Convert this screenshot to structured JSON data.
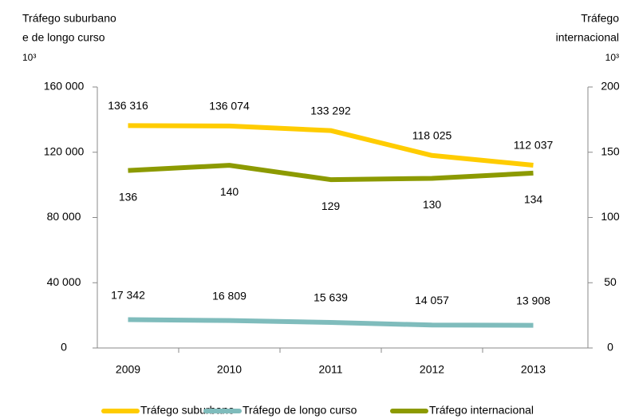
{
  "chart_data": {
    "type": "line",
    "y_axis_label": [
      "Tráfego suburbano",
      "e de longo curso"
    ],
    "y_unit": "10³",
    "y2_axis_label": [
      "Tráfego",
      "internacional"
    ],
    "y2_unit": "10³",
    "categories": [
      "2009",
      "2010",
      "2011",
      "2012",
      "2013"
    ],
    "series": [
      {
        "name": "Tráfego suburbano",
        "color": "#ffcc00",
        "values": [
          136316,
          136074,
          133292,
          118025,
          112037
        ],
        "value_labels": [
          "136 316",
          "136 074",
          "133 292",
          "118 025",
          "112 037"
        ]
      },
      {
        "name": "Tráfego de longo curso",
        "color": "#7fbcbc",
        "values": [
          17342,
          16809,
          15639,
          14057,
          13908
        ],
        "value_labels": [
          "17 342",
          "16 809",
          "15 639",
          "14 057",
          "13 908"
        ]
      },
      {
        "name": "Tráfego internacional",
        "color": "#8c9a00",
        "axis": "y2",
        "values": [
          136,
          140,
          129,
          130,
          134
        ]
      }
    ],
    "ylim": [
      0,
      160000
    ],
    "yticks": [
      0,
      {
        "value": 40000,
        "label": "40 000"
      },
      {
        "value": 80000,
        "label": "80 000"
      },
      {
        "value": 120000,
        "label": "120 000"
      },
      {
        "value": 160000,
        "label": "160 000"
      }
    ],
    "y2lim": [
      0,
      200
    ],
    "y2ticks": [
      0,
      50,
      100,
      150,
      200
    ],
    "grid": false,
    "legend": "bottom"
  }
}
